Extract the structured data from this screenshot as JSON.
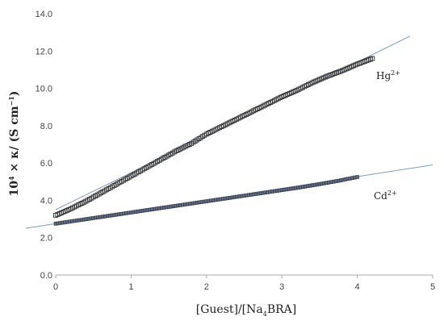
{
  "chart_data": {
    "type": "scatter",
    "title": "",
    "xlabel_prefix": "[Guest]/[Na",
    "xlabel_sub": "4",
    "xlabel_suffix": "BRA]",
    "ylabel_prefix": "10",
    "ylabel_sup": "4",
    "ylabel_rest": " × κ/ (S cm",
    "ylabel_sup2": "−1",
    "ylabel_close": ")",
    "xlim": [
      0,
      5
    ],
    "ylim": [
      0,
      14
    ],
    "x_ticks": [
      "0",
      "1",
      "2",
      "3",
      "4",
      "5"
    ],
    "y_ticks": [
      "0.0",
      "2.0",
      "4.0",
      "6.0",
      "8.0",
      "10.0",
      "12.0",
      "14.0"
    ],
    "grid": false,
    "series": [
      {
        "name_base": "Hg",
        "name_sup": "2+",
        "marker": "open-square",
        "points_x": [
          0.0,
          0.2,
          0.4,
          0.6,
          0.8,
          1.0,
          1.2,
          1.4,
          1.6,
          1.8,
          2.0,
          2.2,
          2.4,
          2.6,
          2.8,
          3.0,
          3.2,
          3.4,
          3.6,
          3.8,
          4.0,
          4.2
        ],
        "points_y": [
          3.2,
          3.55,
          3.95,
          4.4,
          4.85,
          5.3,
          5.75,
          6.2,
          6.65,
          7.05,
          7.55,
          7.95,
          8.35,
          8.75,
          9.15,
          9.55,
          9.9,
          10.3,
          10.65,
          10.95,
          11.3,
          11.6
        ],
        "trendline": {
          "x": [
            0.0,
            4.7
          ],
          "y": [
            3.5,
            12.8
          ]
        }
      },
      {
        "name_base": "Cd",
        "name_sup": "2+",
        "marker": "filled-square",
        "points_x": [
          0.0,
          0.25,
          0.5,
          0.75,
          1.0,
          1.25,
          1.5,
          1.75,
          2.0,
          2.25,
          2.5,
          2.75,
          3.0,
          3.25,
          3.5,
          3.75,
          4.0
        ],
        "points_y": [
          2.75,
          2.9,
          3.05,
          3.2,
          3.35,
          3.5,
          3.65,
          3.8,
          3.95,
          4.1,
          4.25,
          4.4,
          4.55,
          4.7,
          4.87,
          5.05,
          5.25
        ],
        "trendline": {
          "x": [
            -0.4,
            5.0
          ],
          "y": [
            2.5,
            5.9
          ]
        }
      }
    ],
    "colors": {
      "trendline": "#7a9cc8",
      "marker": "#333333",
      "axis": "#aaaaaa",
      "text": "#444444"
    }
  }
}
